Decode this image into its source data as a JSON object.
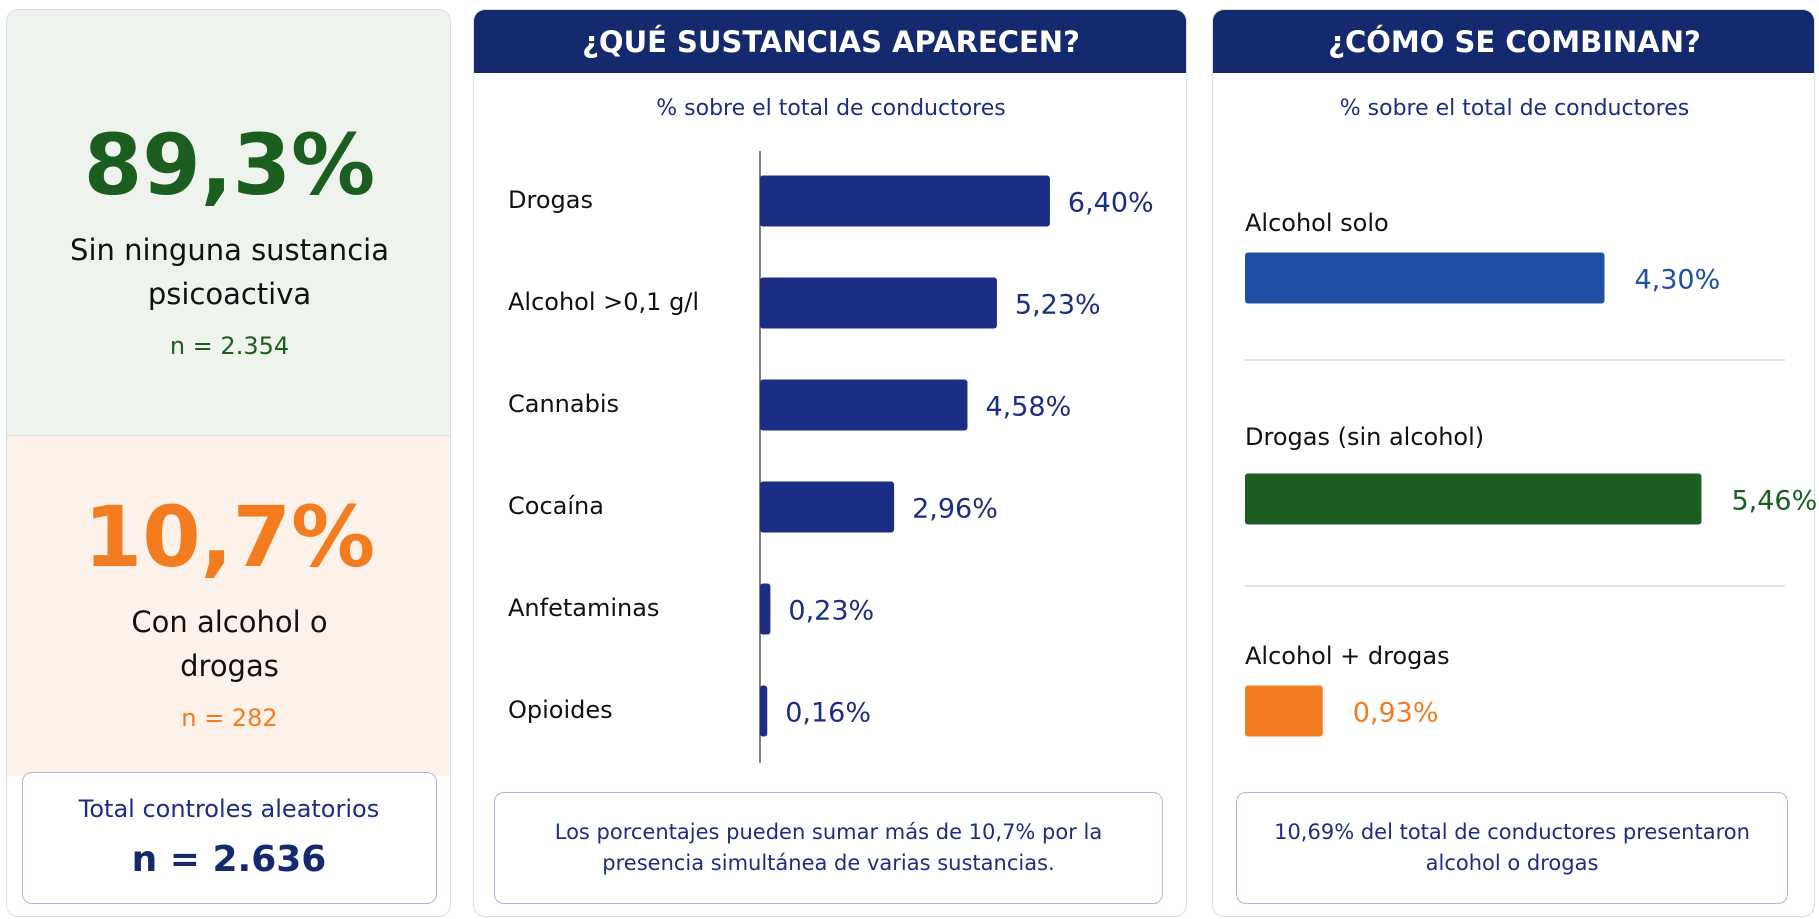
{
  "summary": {
    "without": {
      "value_text": "89,3%",
      "label": "Sin ninguna sustancia psicoactiva",
      "n": "n = 2.354"
    },
    "with": {
      "value_text": "10,7%",
      "label": "Con alcohol o drogas",
      "n": "n = 282"
    },
    "total": {
      "label": "Total controles aleatorios",
      "n": "n = 2.636"
    }
  },
  "chart_data": [
    {
      "type": "bar",
      "title": "¿QUÉ SUSTANCIAS APARECEN?",
      "subtitle": "% sobre el total de conductores",
      "categories": [
        "Drogas",
        "Alcohol >0,1 g/l",
        "Cannabis",
        "Cocaína",
        "Anfetaminas",
        "Opioides"
      ],
      "values": [
        6.4,
        5.23,
        4.58,
        2.96,
        0.23,
        0.16
      ],
      "value_labels": [
        "6,40%",
        "5,23%",
        "4,58%",
        "2,96%",
        "0,23%",
        "0,16%"
      ],
      "color": "#1b2d84",
      "note": "Los porcentajes pueden sumar más de 10,7% por la presencia simultánea de varias sustancias."
    },
    {
      "type": "bar",
      "title": "¿CÓMO SE COMBINAN?",
      "subtitle": "% sobre el total de conductores",
      "categories": [
        "Alcohol solo",
        "Drogas (sin alcohol)",
        "Alcohol + drogas"
      ],
      "values": [
        4.3,
        5.46,
        0.93
      ],
      "value_labels": [
        "4,30%",
        "5,46%",
        "0,93%"
      ],
      "colors": [
        "#1f4fa3",
        "#1b5e20",
        "#f47c20"
      ],
      "note": "10,69% del total de conductores presentaron alcohol o drogas"
    }
  ]
}
